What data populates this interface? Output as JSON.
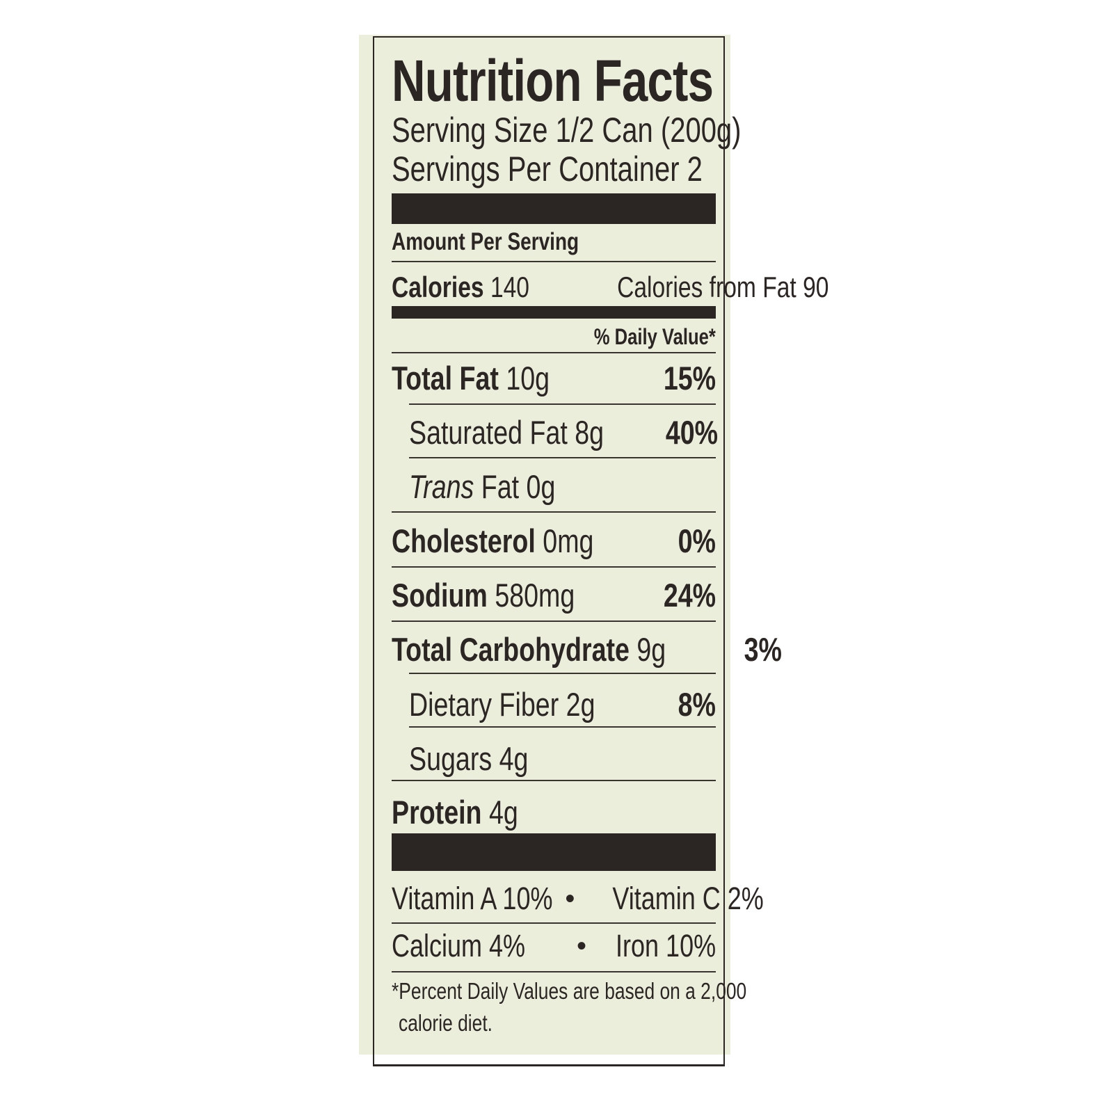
{
  "label": {
    "title": "Nutrition Facts",
    "serving_size": "Serving Size 1/2 Can (200g)",
    "servings_per_container": "Servings Per Container 2",
    "amount_per_serving": "Amount Per Serving",
    "calories_label": "Calories",
    "calories_value": "140",
    "calories_from_fat": "Calories from Fat 90",
    "daily_value_header": "% Daily Value*",
    "nutrients": [
      {
        "name": "Total Fat",
        "amount": "10g",
        "dv": "15%"
      },
      {
        "name": "Saturated Fat",
        "amount": "8g",
        "dv": "40%"
      },
      {
        "name": "Trans",
        "amount": "Fat 0g",
        "dv": ""
      },
      {
        "name": "Cholesterol",
        "amount": "0mg",
        "dv": "0%"
      },
      {
        "name": "Sodium",
        "amount": "580mg",
        "dv": "24%"
      },
      {
        "name": "Total Carbohydrate",
        "amount": "9g",
        "dv": "3%"
      },
      {
        "name": "Dietary Fiber",
        "amount": "2g",
        "dv": "8%"
      },
      {
        "name": "Sugars",
        "amount": "4g",
        "dv": ""
      },
      {
        "name": "Protein",
        "amount": "4g",
        "dv": ""
      }
    ],
    "vitamins": [
      {
        "left": "Vitamin A 10%",
        "right": "Vitamin C 2%"
      },
      {
        "left": "Calcium 4%",
        "right": "Iron 10%"
      }
    ],
    "bullet": "•",
    "footnote_line1": "*Percent Daily Values are based on a 2,000",
    "footnote_line2": "calorie diet."
  },
  "colors": {
    "ink": "#2b2624",
    "label_background": "#eceedc",
    "page_background": "#ffffff"
  }
}
